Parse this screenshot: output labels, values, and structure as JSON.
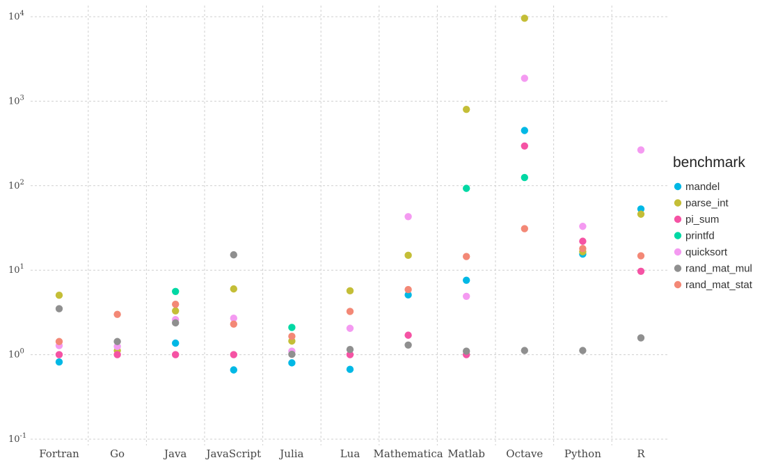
{
  "chart_data": {
    "type": "scatter",
    "title": "",
    "xlabel": "",
    "ylabel": "",
    "y_scale": "log10",
    "ylim": [
      0.1,
      10000
    ],
    "y_ticks": [
      {
        "value": 0.1,
        "base": "10",
        "exp": "-1"
      },
      {
        "value": 1,
        "base": "10",
        "exp": "0"
      },
      {
        "value": 10,
        "base": "10",
        "exp": "1"
      },
      {
        "value": 100,
        "base": "10",
        "exp": "2"
      },
      {
        "value": 1000,
        "base": "10",
        "exp": "3"
      },
      {
        "value": 10000,
        "base": "10",
        "exp": "4"
      }
    ],
    "grid": true,
    "legend_position": "right",
    "legend_title": "benchmark",
    "categories": [
      "Fortran",
      "Go",
      "Java",
      "JavaScript",
      "Julia",
      "Lua",
      "Mathematica",
      "Matlab",
      "Octave",
      "Python",
      "R"
    ],
    "series": [
      {
        "name": "mandel",
        "color": "#00b8e5",
        "values": [
          0.82,
          null,
          1.37,
          0.66,
          0.8,
          0.67,
          5.1,
          7.6,
          450,
          15.5,
          53
        ]
      },
      {
        "name": "parse_int",
        "color": "#c4be37",
        "values": [
          5.05,
          1.12,
          3.3,
          6.0,
          1.45,
          5.7,
          15.0,
          800,
          9600,
          16.5,
          46
        ]
      },
      {
        "name": "pi_sum",
        "color": "#f553a4",
        "values": [
          1.0,
          1.0,
          1.0,
          1.0,
          null,
          1.0,
          1.7,
          1.0,
          295,
          22,
          9.7
        ]
      },
      {
        "name": "printfd",
        "color": "#00d8a4",
        "values": [
          null,
          null,
          5.6,
          null,
          2.1,
          null,
          null,
          93,
          125,
          null,
          null
        ]
      },
      {
        "name": "quicksort",
        "color": "#f49af1",
        "values": [
          1.28,
          1.25,
          2.6,
          2.7,
          1.1,
          2.05,
          43,
          4.9,
          1870,
          33,
          265
        ]
      },
      {
        "name": "rand_mat_mul",
        "color": "#8f8f8f",
        "values": [
          3.5,
          1.43,
          2.38,
          15.2,
          1.01,
          1.15,
          1.3,
          1.1,
          1.12,
          1.12,
          1.58
        ]
      },
      {
        "name": "rand_mat_stat",
        "color": "#f38876",
        "values": [
          1.43,
          3.0,
          3.95,
          2.3,
          1.65,
          3.25,
          5.9,
          14.5,
          31,
          18,
          14.8
        ]
      }
    ]
  }
}
